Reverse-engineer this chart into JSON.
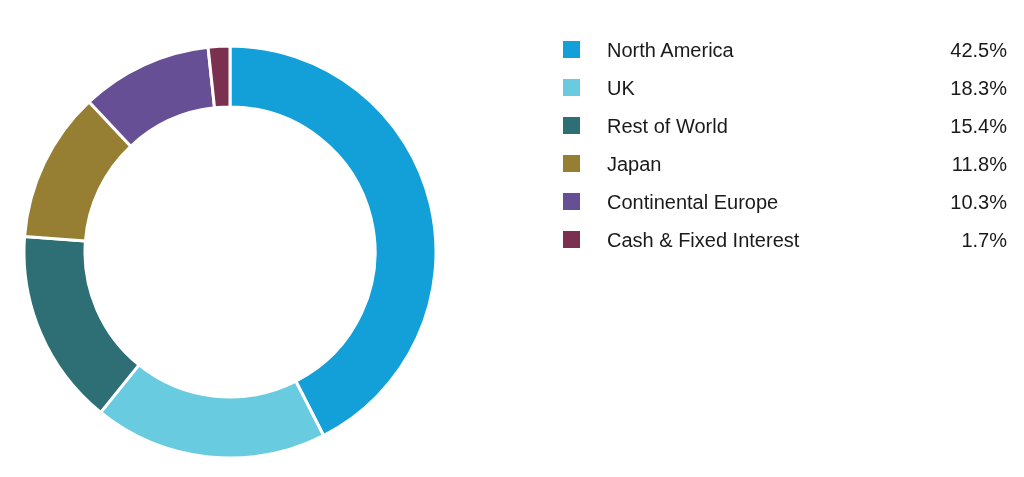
{
  "chart_data": {
    "type": "donut",
    "categories": [
      "North America",
      "UK",
      "Rest of World",
      "Japan",
      "Continental Europe",
      "Cash & Fixed Interest"
    ],
    "values": [
      42.5,
      18.3,
      15.4,
      11.8,
      10.3,
      1.7
    ],
    "value_labels": [
      "42.5%",
      "18.3%",
      "15.4%",
      "11.8%",
      "10.3%",
      "1.7%"
    ],
    "colors": [
      "#13a0d8",
      "#68cbe0",
      "#2e6e75",
      "#967f32",
      "#664f94",
      "#7c3050"
    ],
    "legend": "top right"
  }
}
